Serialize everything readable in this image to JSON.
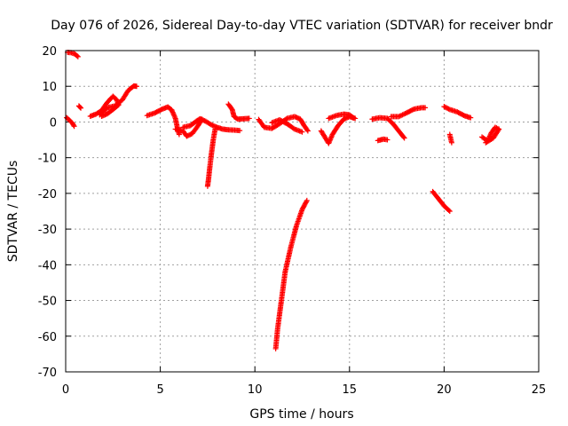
{
  "chart_data": {
    "type": "scatter",
    "title": "Day 076 of 2026, Sidereal Day-to-day VTEC variation (SDTVAR) for receiver bndr",
    "xlabel": "GPS time / hours",
    "ylabel": "SDTVAR / TECUs",
    "xlim": [
      0,
      25
    ],
    "ylim": [
      -70,
      20
    ],
    "xticks": [
      0,
      5,
      10,
      15,
      20,
      25
    ],
    "xtick_labels": [
      "0",
      "5",
      "10",
      "15",
      "20",
      "25"
    ],
    "yticks": [
      20,
      10,
      0,
      -10,
      -20,
      -30,
      -40,
      -50,
      -60,
      -70
    ],
    "ytick_labels": [
      "20",
      "10",
      "0",
      "-10",
      "-20",
      "-30",
      "-40",
      "-50",
      "-60",
      "-70"
    ],
    "grid": true,
    "marker": "+",
    "marker_color": "#ff0000",
    "segments": [
      {
        "name": "arc-1",
        "points": [
          [
            0.05,
            1.2
          ],
          [
            0.2,
            0.5
          ],
          [
            0.35,
            -0.3
          ],
          [
            0.45,
            -1.2
          ]
        ]
      },
      {
        "name": "arc-2",
        "points": [
          [
            0.1,
            19.5
          ],
          [
            0.3,
            19.4
          ],
          [
            0.5,
            19.0
          ],
          [
            0.65,
            18.3
          ]
        ]
      },
      {
        "name": "arc-3",
        "points": [
          [
            0.7,
            4.5
          ],
          [
            0.8,
            3.9
          ]
        ]
      },
      {
        "name": "arc-4",
        "points": [
          [
            1.3,
            1.6
          ],
          [
            1.6,
            2.2
          ],
          [
            1.9,
            3.2
          ],
          [
            2.2,
            5.5
          ],
          [
            2.5,
            7.2
          ],
          [
            2.7,
            6.2
          ],
          [
            2.8,
            4.8
          ],
          [
            2.5,
            3.5
          ],
          [
            2.2,
            2.3
          ],
          [
            1.9,
            1.6
          ]
        ]
      },
      {
        "name": "arc-5",
        "points": [
          [
            1.8,
            2.0
          ],
          [
            2.2,
            4.0
          ],
          [
            2.6,
            4.5
          ],
          [
            3.0,
            6.2
          ],
          [
            3.3,
            8.8
          ],
          [
            3.6,
            10.1
          ],
          [
            3.75,
            10.0
          ]
        ]
      },
      {
        "name": "arc-6",
        "points": [
          [
            4.3,
            1.8
          ],
          [
            4.7,
            2.5
          ],
          [
            5.1,
            3.6
          ],
          [
            5.4,
            4.2
          ],
          [
            5.6,
            3.4
          ],
          [
            5.8,
            1.0
          ],
          [
            5.9,
            -1.5
          ],
          [
            6.0,
            -3.5
          ]
        ]
      },
      {
        "name": "arc-7",
        "points": [
          [
            5.8,
            -2.0
          ],
          [
            6.2,
            -2.5
          ],
          [
            6.4,
            -4.0
          ],
          [
            6.7,
            -3.2
          ],
          [
            7.0,
            -1.0
          ],
          [
            7.2,
            0.8
          ]
        ]
      },
      {
        "name": "arc-8",
        "points": [
          [
            6.2,
            -1.5
          ],
          [
            6.6,
            -1.0
          ],
          [
            6.9,
            0.2
          ],
          [
            7.1,
            0.9
          ],
          [
            7.4,
            0.2
          ],
          [
            7.7,
            -0.8
          ],
          [
            8.0,
            -1.5
          ],
          [
            8.3,
            -2.0
          ],
          [
            8.6,
            -2.2
          ],
          [
            9.0,
            -2.3
          ],
          [
            9.2,
            -2.4
          ]
        ]
      },
      {
        "name": "arc-9",
        "points": [
          [
            7.9,
            -2.0
          ],
          [
            7.8,
            -5.0
          ],
          [
            7.7,
            -9.0
          ],
          [
            7.6,
            -13.5
          ],
          [
            7.55,
            -16.0
          ],
          [
            7.5,
            -18.0
          ]
        ]
      },
      {
        "name": "arc-10",
        "points": [
          [
            8.6,
            5.0
          ],
          [
            8.8,
            3.5
          ],
          [
            8.9,
            1.5
          ],
          [
            9.1,
            0.8
          ],
          [
            9.4,
            0.9
          ],
          [
            9.7,
            1.0
          ]
        ]
      },
      {
        "name": "arc-11",
        "points": [
          [
            10.2,
            0.7
          ],
          [
            10.5,
            -1.5
          ],
          [
            10.9,
            -1.8
          ],
          [
            11.3,
            -0.5
          ],
          [
            11.7,
            1.0
          ],
          [
            12.1,
            1.5
          ],
          [
            12.4,
            0.8
          ],
          [
            12.6,
            -1.0
          ],
          [
            12.8,
            -2.5
          ]
        ]
      },
      {
        "name": "arc-12",
        "points": [
          [
            10.9,
            -0.2
          ],
          [
            11.3,
            0.6
          ],
          [
            11.7,
            -0.5
          ],
          [
            12.1,
            -2.0
          ],
          [
            12.5,
            -2.8
          ]
        ]
      },
      {
        "name": "arc-13",
        "points": [
          [
            11.1,
            -63.5
          ],
          [
            11.2,
            -58.0
          ],
          [
            11.4,
            -50.0
          ],
          [
            11.6,
            -42.0
          ],
          [
            11.9,
            -35.0
          ],
          [
            12.2,
            -29.0
          ],
          [
            12.5,
            -24.5
          ],
          [
            12.75,
            -22.0
          ]
        ]
      },
      {
        "name": "arc-14",
        "points": [
          [
            13.5,
            -2.5
          ],
          [
            13.9,
            -6.0
          ],
          [
            14.1,
            -3.5
          ],
          [
            14.4,
            -1.0
          ],
          [
            14.7,
            0.8
          ],
          [
            15.0,
            1.5
          ],
          [
            15.3,
            1.0
          ]
        ]
      },
      {
        "name": "arc-15",
        "points": [
          [
            13.9,
            1.0
          ],
          [
            14.3,
            1.8
          ],
          [
            14.7,
            2.2
          ],
          [
            15.0,
            2.0
          ],
          [
            15.2,
            1.2
          ]
        ]
      },
      {
        "name": "arc-16",
        "points": [
          [
            16.2,
            0.8
          ],
          [
            16.6,
            1.2
          ],
          [
            17.0,
            1.0
          ],
          [
            17.3,
            -0.5
          ],
          [
            17.6,
            -2.5
          ],
          [
            17.9,
            -4.5
          ]
        ]
      },
      {
        "name": "arc-17",
        "points": [
          [
            16.5,
            -5.2
          ],
          [
            16.8,
            -4.8
          ],
          [
            17.0,
            -5.0
          ]
        ]
      },
      {
        "name": "arc-18",
        "points": [
          [
            17.2,
            1.5
          ],
          [
            17.6,
            1.5
          ],
          [
            18.0,
            2.5
          ],
          [
            18.4,
            3.6
          ],
          [
            18.8,
            4.0
          ],
          [
            19.0,
            4.0
          ]
        ]
      },
      {
        "name": "arc-19",
        "points": [
          [
            19.4,
            -19.5
          ],
          [
            19.7,
            -21.5
          ],
          [
            20.0,
            -23.5
          ],
          [
            20.3,
            -25.0
          ]
        ]
      },
      {
        "name": "arc-20",
        "points": [
          [
            20.0,
            4.3
          ],
          [
            20.3,
            3.5
          ],
          [
            20.7,
            2.8
          ],
          [
            21.1,
            1.7
          ],
          [
            21.4,
            1.2
          ]
        ]
      },
      {
        "name": "arc-21",
        "points": [
          [
            20.3,
            -3.5
          ],
          [
            20.4,
            -5.8
          ]
        ]
      },
      {
        "name": "arc-22",
        "points": [
          [
            22.0,
            -4.2
          ],
          [
            22.3,
            -5.3
          ],
          [
            22.5,
            -3.0
          ],
          [
            22.7,
            -1.5
          ],
          [
            22.9,
            -2.0
          ],
          [
            22.6,
            -4.5
          ],
          [
            22.2,
            -5.8
          ]
        ]
      }
    ]
  }
}
